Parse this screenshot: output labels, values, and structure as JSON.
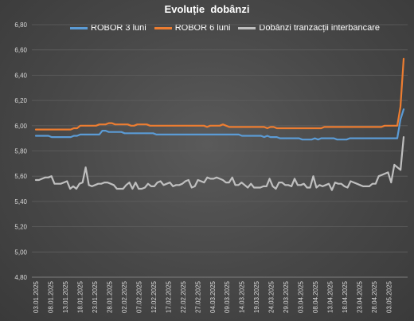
{
  "chart_data": {
    "type": "line",
    "title": "Evoluție  dobânzi",
    "ylim": [
      4.8,
      6.8
    ],
    "yticks": [
      "4,80",
      "5,00",
      "5,20",
      "5,40",
      "5,60",
      "5,80",
      "6,00",
      "6,20",
      "6,40",
      "6,60",
      "6,80"
    ],
    "x_start": "03.01.2025",
    "x_end": "08.05.2025",
    "x_tick_labels": [
      "03.01.2025",
      "08.01.2025",
      "13.01.2025",
      "18.01.2025",
      "23.01.2025",
      "28.01.2025",
      "02.02.2025",
      "07.02.2025",
      "12.02.2025",
      "17.02.2025",
      "22.02.2025",
      "27.02.2025",
      "04.03.2025",
      "09.03.2025",
      "14.03.2025",
      "19.03.2025",
      "24.03.2025",
      "29.03.2025",
      "03.04.2025",
      "08.04.2025",
      "13.04.2025",
      "18.04.2025",
      "23.04.2025",
      "28.04.2025",
      "03.05.2025"
    ],
    "grid": true,
    "legend_position": "top",
    "series": [
      {
        "name": "ROBOR 3 luni",
        "color": "#5B9BD5",
        "values": [
          5.92,
          5.92,
          5.92,
          5.92,
          5.92,
          5.91,
          5.91,
          5.91,
          5.91,
          5.91,
          5.91,
          5.91,
          5.92,
          5.92,
          5.93,
          5.93,
          5.93,
          5.93,
          5.93,
          5.93,
          5.93,
          5.96,
          5.96,
          5.95,
          5.95,
          5.95,
          5.95,
          5.95,
          5.94,
          5.94,
          5.94,
          5.94,
          5.94,
          5.94,
          5.94,
          5.94,
          5.94,
          5.94,
          5.93,
          5.93,
          5.93,
          5.93,
          5.93,
          5.93,
          5.93,
          5.93,
          5.93,
          5.93,
          5.93,
          5.93,
          5.93,
          5.93,
          5.93,
          5.93,
          5.93,
          5.93,
          5.93,
          5.93,
          5.93,
          5.93,
          5.93,
          5.93,
          5.93,
          5.93,
          5.93,
          5.92,
          5.92,
          5.92,
          5.92,
          5.92,
          5.92,
          5.92,
          5.91,
          5.92,
          5.91,
          5.91,
          5.91,
          5.9,
          5.9,
          5.9,
          5.9,
          5.9,
          5.9,
          5.9,
          5.89,
          5.89,
          5.89,
          5.89,
          5.9,
          5.89,
          5.9,
          5.9,
          5.9,
          5.9,
          5.9,
          5.89,
          5.89,
          5.89,
          5.89,
          5.9,
          5.9,
          5.9,
          5.9,
          5.9,
          5.9,
          5.9,
          5.9,
          5.9,
          5.9,
          5.9,
          5.9,
          5.9,
          5.9,
          5.9,
          5.9,
          6.05,
          6.13
        ]
      },
      {
        "name": "ROBOR 6 luni",
        "color": "#ED7D31",
        "values": [
          5.97,
          5.97,
          5.97,
          5.97,
          5.97,
          5.97,
          5.97,
          5.97,
          5.97,
          5.97,
          5.97,
          5.97,
          5.98,
          5.98,
          6.0,
          6.0,
          6.0,
          6.0,
          6.0,
          6.0,
          6.01,
          6.01,
          6.01,
          6.02,
          6.02,
          6.01,
          6.01,
          6.01,
          6.01,
          6.01,
          6.0,
          6.0,
          6.01,
          6.01,
          6.01,
          6.01,
          6.0,
          6.0,
          6.0,
          6.0,
          6.0,
          6.0,
          6.0,
          6.0,
          6.0,
          6.0,
          6.0,
          6.0,
          6.0,
          6.0,
          6.0,
          6.0,
          6.0,
          6.0,
          5.99,
          6.0,
          6.0,
          6.0,
          6.0,
          6.01,
          6.0,
          5.99,
          5.99,
          5.99,
          5.99,
          5.99,
          5.99,
          5.99,
          5.99,
          5.99,
          5.99,
          5.99,
          5.99,
          5.98,
          5.99,
          5.99,
          5.98,
          5.98,
          5.98,
          5.98,
          5.98,
          5.98,
          5.98,
          5.98,
          5.98,
          5.98,
          5.98,
          5.98,
          5.98,
          5.98,
          5.98,
          5.99,
          5.99,
          5.99,
          5.99,
          5.99,
          5.99,
          5.99,
          5.99,
          5.99,
          5.99,
          5.99,
          5.99,
          5.99,
          5.99,
          5.99,
          5.99,
          5.99,
          5.99,
          5.99,
          6.0,
          6.0,
          6.0,
          6.0,
          6.0,
          6.15,
          6.53
        ]
      },
      {
        "name": "Dobânzi tranzacții interbancare",
        "color": "#BFBFBF",
        "values": [
          5.57,
          5.57,
          5.58,
          5.59,
          5.59,
          5.6,
          5.54,
          5.54,
          5.54,
          5.55,
          5.56,
          5.5,
          5.52,
          5.5,
          5.54,
          5.55,
          5.67,
          5.53,
          5.52,
          5.53,
          5.54,
          5.54,
          5.55,
          5.55,
          5.54,
          5.53,
          5.5,
          5.5,
          5.5,
          5.53,
          5.55,
          5.5,
          5.55,
          5.5,
          5.5,
          5.51,
          5.54,
          5.52,
          5.52,
          5.55,
          5.56,
          5.53,
          5.54,
          5.55,
          5.52,
          5.53,
          5.53,
          5.54,
          5.56,
          5.57,
          5.51,
          5.52,
          5.57,
          5.56,
          5.55,
          5.59,
          5.58,
          5.58,
          5.59,
          5.58,
          5.57,
          5.55,
          5.55,
          5.59,
          5.53,
          5.53,
          5.55,
          5.53,
          5.51,
          5.54,
          5.51,
          5.51,
          5.51,
          5.52,
          5.52,
          5.58,
          5.52,
          5.5,
          5.55,
          5.55,
          5.53,
          5.53,
          5.52,
          5.58,
          5.53,
          5.53,
          5.54,
          5.51,
          5.51,
          5.6,
          5.51,
          5.53,
          5.52,
          5.53,
          5.54,
          5.49,
          5.55,
          5.54,
          5.54,
          5.52,
          5.51,
          5.56,
          5.55,
          5.54,
          5.53,
          5.52,
          5.52,
          5.52,
          5.54,
          5.54,
          5.6,
          5.61,
          5.62,
          5.63,
          5.55,
          5.69,
          5.67,
          5.65,
          5.91
        ]
      }
    ]
  }
}
